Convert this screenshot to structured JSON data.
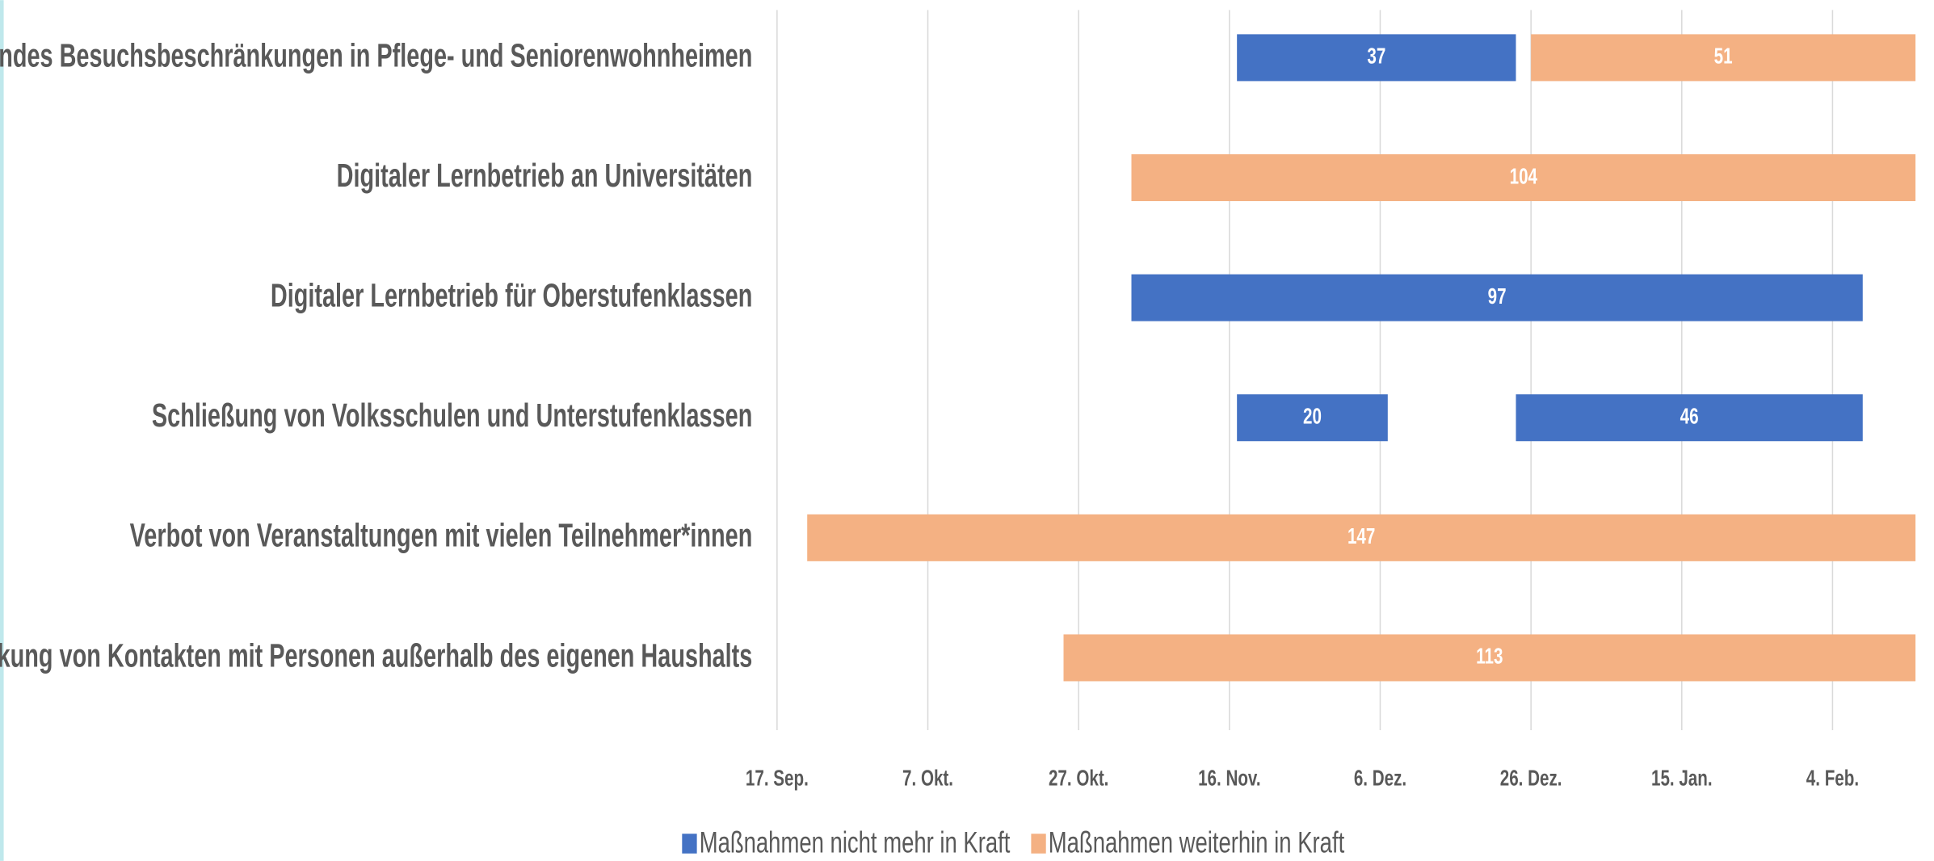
{
  "chart_data": {
    "type": "gantt",
    "categories": [
      "Weitgehendes Besuchsbeschränkungen in Pflege- und Seniorenwohnheimen",
      "Digitaler Lernbetrieb an Universitäten",
      "Digitaler Lernbetrieb für Oberstufenklassen",
      "Schließung von Volksschulen und Unterstufenklassen",
      "Verbot von Veranstaltungen mit vielen Teilnehmer*innen",
      "Einschränkung von Kontakten mit Personen außerhalb des eigenen Haushalts"
    ],
    "series": [
      {
        "name": "Maßnahmen nicht mehr in Kraft",
        "color": "#4472c4",
        "bars": [
          {
            "category": 0,
            "start": 61,
            "value": 37
          },
          {
            "category": 2,
            "start": 47,
            "value": 97
          },
          {
            "category": 3,
            "start": 61,
            "value": 20
          },
          {
            "category": 3,
            "start": 98,
            "value": 46
          }
        ]
      },
      {
        "name": "Maßnahmen weiterhin in Kraft",
        "color": "#f4b183",
        "bars": [
          {
            "category": 0,
            "start": 100,
            "value": 51
          },
          {
            "category": 1,
            "start": 47,
            "value": 104
          },
          {
            "category": 4,
            "start": 4,
            "value": 147
          },
          {
            "category": 5,
            "start": 38,
            "value": 113
          }
        ]
      }
    ],
    "xlim": [
      0,
      151
    ],
    "xticks": [
      {
        "value": 0,
        "label": "17. Sep."
      },
      {
        "value": 20,
        "label": "7. Okt."
      },
      {
        "value": 40,
        "label": "27. Okt."
      },
      {
        "value": 60,
        "label": "16. Nov."
      },
      {
        "value": 80,
        "label": "6. Dez."
      },
      {
        "value": 100,
        "label": "26. Dez."
      },
      {
        "value": 120,
        "label": "15. Jan."
      },
      {
        "value": 140,
        "label": "4. Feb."
      }
    ],
    "grid": true,
    "legend": "bottom"
  }
}
